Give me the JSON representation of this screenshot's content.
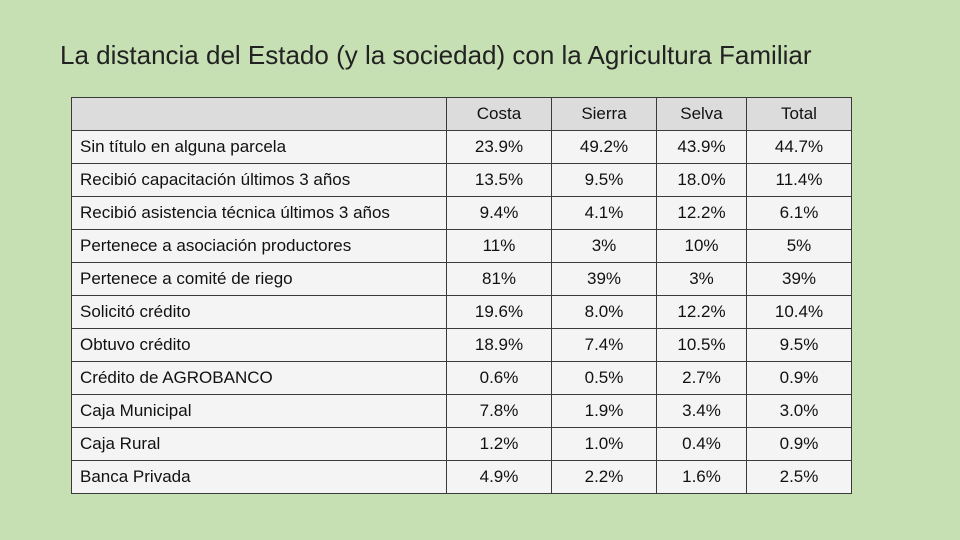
{
  "title": "La distancia del Estado (y la sociedad) con la Agricultura Familiar",
  "table": {
    "headers": [
      "",
      "Costa",
      "Sierra",
      "Selva",
      "Total"
    ],
    "rows": [
      {
        "label": "Sin título en alguna parcela",
        "values": [
          "23.9%",
          "49.2%",
          "43.9%",
          "44.7%"
        ]
      },
      {
        "label": "Recibió capacitación últimos 3 años",
        "values": [
          "13.5%",
          "9.5%",
          "18.0%",
          "11.4%"
        ]
      },
      {
        "label": "Recibió asistencia técnica últimos 3 años",
        "values": [
          "9.4%",
          "4.1%",
          "12.2%",
          "6.1%"
        ]
      },
      {
        "label": "Pertenece a asociación productores",
        "values": [
          "11%",
          "3%",
          "10%",
          "5%"
        ]
      },
      {
        "label": "Pertenece a comité de riego",
        "values": [
          "81%",
          "39%",
          "3%",
          "39%"
        ]
      },
      {
        "label": "Solicitó crédito",
        "values": [
          "19.6%",
          "8.0%",
          "12.2%",
          "10.4%"
        ]
      },
      {
        "label": "Obtuvo crédito",
        "values": [
          "18.9%",
          "7.4%",
          "10.5%",
          "9.5%"
        ]
      },
      {
        "label": "Crédito de AGROBANCO",
        "values": [
          "0.6%",
          "0.5%",
          "2.7%",
          "0.9%"
        ]
      },
      {
        "label": "Caja Municipal",
        "values": [
          "7.8%",
          "1.9%",
          "3.4%",
          "3.0%"
        ]
      },
      {
        "label": "Caja Rural",
        "values": [
          "1.2%",
          "1.0%",
          "0.4%",
          "0.9%"
        ]
      },
      {
        "label": "Banca Privada",
        "values": [
          "4.9%",
          "2.2%",
          "1.6%",
          "2.5%"
        ]
      }
    ]
  }
}
